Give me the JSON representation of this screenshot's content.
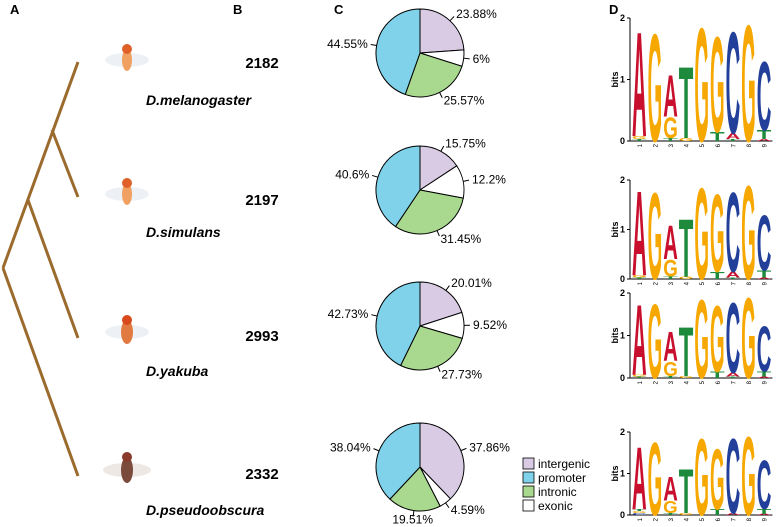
{
  "panel_labels": [
    "A",
    "B",
    "C",
    "D"
  ],
  "species": [
    "D.melanogaster",
    "D.simulans",
    "D.yakuba",
    "D.pseudoobscura"
  ],
  "counts": [
    2182,
    2197,
    2993,
    2332
  ],
  "chart_data": [
    {
      "type": "pie",
      "categories": [
        "intergenic",
        "exonic",
        "intronic",
        "promoter"
      ],
      "colors": [
        "#d9cbe3",
        "#ffffff",
        "#a8d98e",
        "#7fd2ea"
      ],
      "values": [
        23.88,
        6,
        25.57,
        44.55
      ],
      "value_labels": [
        "23.88%",
        "6%",
        "25.57%",
        "44.55%"
      ]
    },
    {
      "type": "pie",
      "categories": [
        "intergenic",
        "exonic",
        "intronic",
        "promoter"
      ],
      "colors": [
        "#d9cbe3",
        "#ffffff",
        "#a8d98e",
        "#7fd2ea"
      ],
      "values": [
        15.75,
        12.2,
        31.45,
        40.6
      ],
      "value_labels": [
        "15.75%",
        "12.2%",
        "31.45%",
        "40.6%"
      ]
    },
    {
      "type": "pie",
      "categories": [
        "intergenic",
        "exonic",
        "intronic",
        "promoter"
      ],
      "colors": [
        "#d9cbe3",
        "#ffffff",
        "#a8d98e",
        "#7fd2ea"
      ],
      "values": [
        20.01,
        9.52,
        27.73,
        42.73
      ],
      "value_labels": [
        "20.01%",
        "9.52%",
        "27.73%",
        "42.73%"
      ]
    },
    {
      "type": "pie",
      "categories": [
        "intergenic",
        "exonic",
        "intronic",
        "promoter"
      ],
      "colors": [
        "#d9cbe3",
        "#ffffff",
        "#a8d98e",
        "#7fd2ea"
      ],
      "values": [
        37.86,
        4.59,
        19.51,
        38.04
      ],
      "value_labels": [
        "37.86%",
        "4.59%",
        "19.51%",
        "38.04%"
      ],
      "legend": [
        "intergenic",
        "promoter",
        "intronic",
        "exonic"
      ]
    },
    {
      "type": "logo",
      "ylabel": "bits",
      "ylim": [
        0,
        2
      ],
      "yticks": [
        0,
        1,
        2
      ],
      "categories": [
        "1",
        "2",
        "3",
        "4",
        "5",
        "6",
        "7",
        "8",
        "9"
      ],
      "series": [
        {
          "name": "A",
          "color": "#c8102e",
          "values": [
            1.75,
            null,
            0.7,
            null,
            null,
            null,
            0.1,
            null,
            0.03
          ]
        },
        {
          "name": "C",
          "color": "#22409a",
          "values": [
            null,
            null,
            null,
            null,
            null,
            null,
            1.7,
            null,
            1.15
          ]
        },
        {
          "name": "G",
          "color": "#f6a800",
          "values": [
            0.05,
            1.8,
            0.35,
            0.05,
            1.9,
            1.6,
            null,
            1.95,
            null
          ]
        },
        {
          "name": "T",
          "color": "#1e8a3c",
          "values": [
            0.03,
            null,
            0.05,
            1.2,
            null,
            0.15,
            0.03,
            null,
            0.15
          ]
        }
      ]
    },
    {
      "type": "logo",
      "ylabel": "bits",
      "ylim": [
        0,
        2
      ],
      "yticks": [
        0,
        1,
        2
      ],
      "categories": [
        "1",
        "2",
        "3",
        "4",
        "5",
        "6",
        "7",
        "8",
        "9"
      ],
      "series": [
        {
          "name": "A",
          "color": "#c8102e",
          "values": [
            1.75,
            null,
            0.7,
            null,
            null,
            null,
            0.12,
            null,
            0.03
          ]
        },
        {
          "name": "C",
          "color": "#22409a",
          "values": [
            null,
            null,
            null,
            null,
            null,
            null,
            1.65,
            null,
            1.15
          ]
        },
        {
          "name": "G",
          "color": "#f6a800",
          "values": [
            0.05,
            1.8,
            0.35,
            0.05,
            1.9,
            1.6,
            null,
            1.95,
            null
          ]
        },
        {
          "name": "T",
          "color": "#1e8a3c",
          "values": [
            0.03,
            null,
            0.05,
            1.2,
            null,
            0.15,
            0.03,
            null,
            0.15
          ]
        }
      ]
    },
    {
      "type": "logo",
      "ylabel": "bits",
      "ylim": [
        0,
        2
      ],
      "yticks": [
        0,
        1,
        2
      ],
      "categories": [
        "1",
        "2",
        "3",
        "4",
        "5",
        "6",
        "7",
        "8",
        "9"
      ],
      "series": [
        {
          "name": "A",
          "color": "#c8102e",
          "values": [
            1.7,
            null,
            0.7,
            null,
            null,
            null,
            0.1,
            null,
            0.03
          ]
        },
        {
          "name": "C",
          "color": "#22409a",
          "values": [
            null,
            null,
            null,
            null,
            null,
            null,
            1.7,
            null,
            1.1
          ]
        },
        {
          "name": "G",
          "color": "#f6a800",
          "values": [
            0.05,
            1.8,
            0.35,
            0.05,
            1.9,
            1.6,
            null,
            1.95,
            null
          ]
        },
        {
          "name": "T",
          "color": "#1e8a3c",
          "values": [
            0.03,
            null,
            0.05,
            1.2,
            null,
            0.15,
            0.03,
            null,
            0.12
          ]
        }
      ]
    },
    {
      "type": "logo",
      "ylabel": "bits",
      "ylim": [
        0,
        2
      ],
      "yticks": [
        0,
        1,
        2
      ],
      "categories": [
        "1",
        "2",
        "3",
        "4",
        "5",
        "6",
        "7",
        "8",
        "9"
      ],
      "series": [
        {
          "name": "A",
          "color": "#c8102e",
          "values": [
            1.55,
            null,
            0.6,
            null,
            null,
            null,
            0.05,
            null,
            0.03
          ]
        },
        {
          "name": "C",
          "color": "#22409a",
          "values": [
            0.05,
            null,
            null,
            null,
            null,
            null,
            1.85,
            null,
            1.2
          ]
        },
        {
          "name": "G",
          "color": "#f6a800",
          "values": [
            0.05,
            1.8,
            0.3,
            0.05,
            1.9,
            1.5,
            null,
            1.95,
            null
          ]
        },
        {
          "name": "T",
          "color": "#1e8a3c",
          "values": [
            0.05,
            null,
            0.05,
            1.1,
            null,
            0.15,
            null,
            null,
            0.12
          ]
        }
      ]
    }
  ]
}
